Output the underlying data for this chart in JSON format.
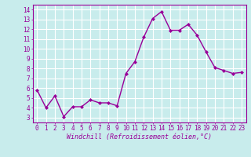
{
  "x": [
    0,
    1,
    2,
    3,
    4,
    5,
    6,
    7,
    8,
    9,
    10,
    11,
    12,
    13,
    14,
    15,
    16,
    17,
    18,
    19,
    20,
    21,
    22,
    23
  ],
  "y": [
    5.8,
    4.0,
    5.2,
    3.1,
    4.1,
    4.1,
    4.8,
    4.5,
    4.5,
    4.2,
    7.5,
    8.7,
    11.2,
    13.1,
    13.8,
    11.9,
    11.9,
    12.5,
    11.4,
    9.7,
    8.1,
    7.8,
    7.5,
    7.6
  ],
  "line_color": "#990099",
  "marker": "D",
  "marker_size": 2.0,
  "bg_color": "#c8ecec",
  "grid_color": "#ffffff",
  "xlabel": "Windchill (Refroidissement éolien,°C)",
  "ylabel_ticks": [
    3,
    4,
    5,
    6,
    7,
    8,
    9,
    10,
    11,
    12,
    13,
    14
  ],
  "xlim": [
    -0.5,
    23.5
  ],
  "ylim": [
    2.5,
    14.5
  ],
  "xticks": [
    0,
    1,
    2,
    3,
    4,
    5,
    6,
    7,
    8,
    9,
    10,
    11,
    12,
    13,
    14,
    15,
    16,
    17,
    18,
    19,
    20,
    21,
    22,
    23
  ],
  "tick_fontsize": 5.5,
  "xlabel_fontsize": 6.0,
  "label_color": "#990099",
  "axis_color": "#990099",
  "linewidth": 1.0
}
